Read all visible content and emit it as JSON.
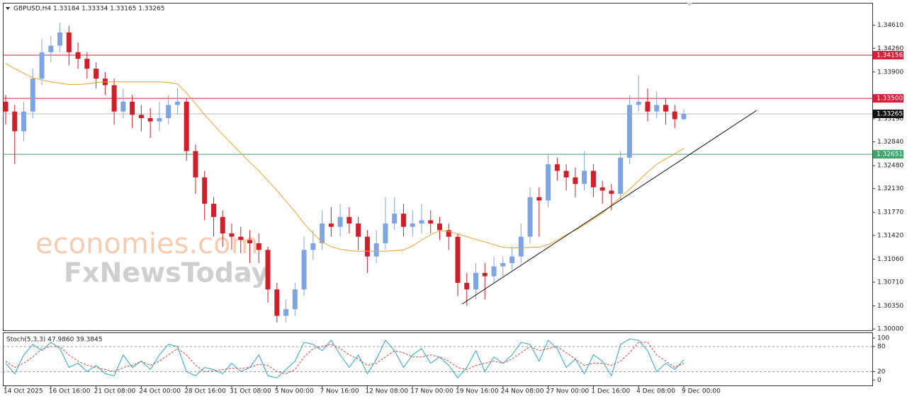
{
  "chart_data": [
    {
      "type": "candlestick",
      "header": "GBPUSD,H4  1.33184 1.33334 1.33165 1.33265",
      "watermark": [
        "economies.com",
        "FxNewsToday"
      ],
      "categories": [
        "14 Oct 2025",
        null,
        null,
        null,
        null,
        "16 Oct 16:00",
        null,
        null,
        null,
        null,
        "21 Oct 08:00",
        null,
        null,
        null,
        null,
        "24 Oct 00:00",
        null,
        null,
        null,
        null,
        "28 Oct 16:00",
        null,
        null,
        null,
        null,
        "31 Oct 08:00",
        null,
        null,
        null,
        null,
        "5 Nov 00:00",
        null,
        null,
        null,
        null,
        "7 Nov 16:00",
        null,
        null,
        null,
        null,
        "12 Nov 08:00",
        null,
        null,
        null,
        null,
        "17 Nov 00:00",
        null,
        null,
        null,
        null,
        "19 Nov 16:00",
        null,
        null,
        null,
        null,
        "24 Nov 08:00",
        null,
        null,
        null,
        null,
        "27 Nov 00:00",
        null,
        null,
        null,
        null,
        "1 Dec 16:00",
        null,
        null,
        null,
        null,
        "4 Dec 08:00",
        null,
        null,
        null,
        null,
        "9 Dec 00:00"
      ],
      "open": [
        1.3345,
        1.333,
        1.33,
        1.333,
        1.338,
        1.342,
        1.343,
        1.345,
        1.342,
        1.341,
        1.3395,
        1.338,
        1.337,
        1.333,
        1.3345,
        1.3325,
        1.332,
        1.3315,
        1.332,
        1.334,
        1.3345,
        1.327,
        1.323,
        1.319,
        1.317,
        1.3145,
        1.314,
        1.3135,
        1.313,
        1.312,
        1.306,
        1.302,
        1.303,
        1.306,
        1.312,
        1.313,
        1.316,
        1.3155,
        1.317,
        1.316,
        1.314,
        1.311,
        1.313,
        1.316,
        1.3175,
        1.3155,
        1.316,
        1.3165,
        1.316,
        1.315,
        1.314,
        1.307,
        1.306,
        1.3085,
        1.308,
        1.3095,
        1.31,
        1.311,
        1.314,
        1.32,
        1.3195,
        1.325,
        1.324,
        1.323,
        1.322,
        1.324,
        1.3215,
        1.321,
        1.3205,
        1.326,
        1.334,
        1.3345,
        1.333,
        1.334,
        1.333,
        1.33184
      ],
      "high": [
        1.3355,
        1.334,
        1.3345,
        1.3395,
        1.344,
        1.3445,
        1.3465,
        1.346,
        1.3435,
        1.342,
        1.3405,
        1.339,
        1.338,
        1.3365,
        1.3355,
        1.334,
        1.3335,
        1.3345,
        1.3355,
        1.3365,
        1.335,
        1.328,
        1.324,
        1.32,
        1.318,
        1.316,
        1.3155,
        1.315,
        1.3145,
        1.3125,
        1.307,
        1.3045,
        1.307,
        1.314,
        1.315,
        1.318,
        1.3185,
        1.319,
        1.3185,
        1.317,
        1.315,
        1.315,
        1.32,
        1.32,
        1.319,
        1.318,
        1.319,
        1.318,
        1.317,
        1.316,
        1.3145,
        1.3085,
        1.31,
        1.31,
        1.311,
        1.311,
        1.3125,
        1.316,
        1.3215,
        1.3215,
        1.3265,
        1.326,
        1.325,
        1.3245,
        1.327,
        1.325,
        1.3225,
        1.322,
        1.327,
        1.3355,
        1.3385,
        1.3365,
        1.336,
        1.335,
        1.334,
        1.33334
      ],
      "low": [
        1.331,
        1.325,
        1.3285,
        1.332,
        1.337,
        1.3405,
        1.342,
        1.34,
        1.3395,
        1.338,
        1.3365,
        1.3355,
        1.331,
        1.332,
        1.3305,
        1.33,
        1.329,
        1.33,
        1.331,
        1.3325,
        1.3255,
        1.3205,
        1.3165,
        1.314,
        1.3125,
        1.312,
        1.3115,
        1.31,
        1.31,
        1.304,
        1.301,
        1.301,
        1.302,
        1.305,
        1.3105,
        1.312,
        1.314,
        1.314,
        1.3145,
        1.312,
        1.3085,
        1.31,
        1.312,
        1.315,
        1.314,
        1.314,
        1.3145,
        1.3145,
        1.3135,
        1.312,
        1.305,
        1.3035,
        1.3045,
        1.3045,
        1.307,
        1.308,
        1.309,
        1.31,
        1.313,
        1.314,
        1.3185,
        1.3225,
        1.321,
        1.32,
        1.321,
        1.32,
        1.319,
        1.318,
        1.3195,
        1.325,
        1.333,
        1.3315,
        1.332,
        1.331,
        1.3305,
        1.33165
      ],
      "close": [
        1.333,
        1.33,
        1.333,
        1.338,
        1.342,
        1.343,
        1.345,
        1.342,
        1.341,
        1.3395,
        1.338,
        1.337,
        1.333,
        1.3345,
        1.3325,
        1.332,
        1.3315,
        1.332,
        1.334,
        1.3345,
        1.327,
        1.323,
        1.319,
        1.317,
        1.3145,
        1.314,
        1.3135,
        1.313,
        1.312,
        1.306,
        1.302,
        1.303,
        1.306,
        1.312,
        1.313,
        1.316,
        1.3155,
        1.317,
        1.316,
        1.314,
        1.311,
        1.313,
        1.316,
        1.3175,
        1.3155,
        1.316,
        1.3165,
        1.316,
        1.315,
        1.314,
        1.307,
        1.306,
        1.3085,
        1.308,
        1.3095,
        1.31,
        1.311,
        1.314,
        1.32,
        1.3195,
        1.325,
        1.324,
        1.323,
        1.322,
        1.324,
        1.3215,
        1.321,
        1.3205,
        1.326,
        1.334,
        1.3345,
        1.333,
        1.334,
        1.333,
        1.33184,
        1.33265
      ],
      "up_color": "#7ea5e2",
      "down_color": "#d01e2a",
      "ma": {
        "color": "#f0a030",
        "values": [
          1.3403,
          1.3395,
          1.3388,
          1.3381,
          1.3378,
          1.3375,
          1.3373,
          1.3371,
          1.3371,
          1.3372,
          1.3374,
          1.3375,
          1.3375,
          1.3375,
          1.3375,
          1.3375,
          1.3375,
          1.3375,
          1.3374,
          1.3372,
          1.3358,
          1.3342,
          1.3325,
          1.331,
          1.3295,
          1.3281,
          1.3267,
          1.3253,
          1.324,
          1.3225,
          1.321,
          1.3194,
          1.3178,
          1.316,
          1.3145,
          1.3132,
          1.3125,
          1.3121,
          1.3119,
          1.3118,
          1.3118,
          1.3118,
          1.3118,
          1.3119,
          1.312,
          1.3126,
          1.3135,
          1.3143,
          1.3149,
          1.3148,
          1.3144,
          1.314,
          1.3136,
          1.3132,
          1.3128,
          1.3124,
          1.3123,
          1.3123,
          1.3124,
          1.3124,
          1.3128,
          1.3135,
          1.3143,
          1.315,
          1.3158,
          1.3167,
          1.3176,
          1.3188,
          1.32,
          1.3212,
          1.3225,
          1.3238,
          1.325,
          1.3258,
          1.3266,
          1.3274
        ]
      },
      "ylim": [
        1.2998,
        1.3495
      ],
      "yticks": [
        {
          "value": 1.3,
          "label": "1.30000"
        },
        {
          "value": 1.3035,
          "label": "1.30350"
        },
        {
          "value": 1.3071,
          "label": "1.30710"
        },
        {
          "value": 1.3106,
          "label": "1.31060"
        },
        {
          "value": 1.3142,
          "label": "1.31420"
        },
        {
          "value": 1.3177,
          "label": "1.31770"
        },
        {
          "value": 1.3213,
          "label": "1.32130"
        },
        {
          "value": 1.3248,
          "label": "1.32480"
        },
        {
          "value": 1.3284,
          "label": "1.32840"
        },
        {
          "value": 1.3319,
          "label": "1.33190"
        },
        {
          "value": 1.339,
          "label": "1.33900"
        },
        {
          "value": 1.3426,
          "label": "1.34260"
        },
        {
          "value": 1.3461,
          "label": "1.34610"
        }
      ],
      "levels": [
        {
          "value": 1.34156,
          "label": "1.34156",
          "color": "#d4203a"
        },
        {
          "value": 1.335,
          "label": "1.33500",
          "color": "#d4203a"
        },
        {
          "value": 1.33265,
          "label": "1.33265",
          "color": "#111111"
        },
        {
          "value": 1.32651,
          "label": "1.32651",
          "color": "#3fa36b"
        }
      ]
    },
    {
      "type": "line",
      "title": "Stoch(5,3,3) 47.9860 39.3845",
      "series": [
        {
          "color": "#2aa8c8",
          "values": [
            40,
            15,
            60,
            85,
            70,
            90,
            75,
            30,
            40,
            20,
            35,
            15,
            10,
            60,
            30,
            45,
            25,
            60,
            85,
            80,
            20,
            10,
            30,
            25,
            15,
            40,
            20,
            30,
            60,
            10,
            5,
            25,
            45,
            90,
            85,
            70,
            95,
            60,
            30,
            60,
            15,
            50,
            95,
            70,
            30,
            60,
            75,
            40,
            55,
            35,
            5,
            30,
            70,
            20,
            55,
            40,
            60,
            90,
            85,
            45,
            95,
            75,
            30,
            50,
            15,
            60,
            45,
            10,
            85,
            98,
            95,
            70,
            20,
            40,
            25,
            47.986
          ]
        },
        {
          "color": "#d9443c",
          "dashed": true,
          "values": [
            45,
            30,
            40,
            55,
            75,
            80,
            80,
            60,
            45,
            35,
            30,
            25,
            20,
            30,
            35,
            45,
            35,
            45,
            60,
            75,
            60,
            35,
            20,
            22,
            25,
            28,
            28,
            30,
            38,
            35,
            20,
            15,
            25,
            55,
            75,
            80,
            85,
            75,
            60,
            50,
            35,
            40,
            55,
            70,
            65,
            55,
            55,
            60,
            55,
            45,
            30,
            25,
            35,
            40,
            45,
            40,
            50,
            65,
            80,
            70,
            75,
            80,
            65,
            50,
            35,
            40,
            40,
            35,
            45,
            65,
            90,
            90,
            60,
            45,
            30,
            39.3845
          ]
        }
      ],
      "ylim": [
        -13,
        112
      ],
      "yticks": [
        0,
        20,
        80,
        100
      ],
      "levels": [
        20,
        80
      ]
    }
  ]
}
